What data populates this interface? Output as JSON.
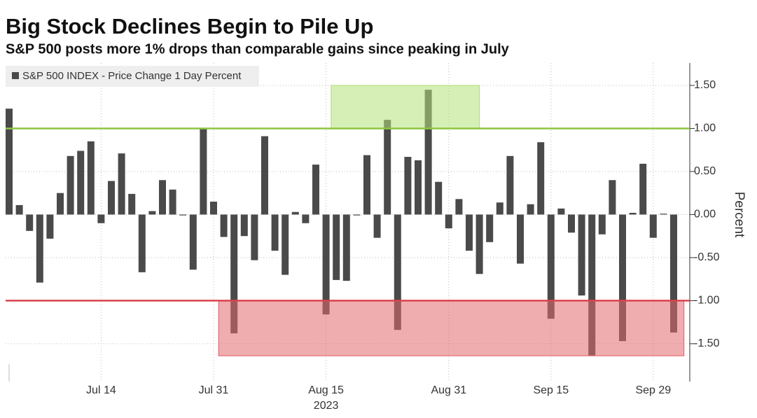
{
  "chart_data": {
    "type": "bar",
    "title": "Big Stock Declines Begin to Pile Up",
    "subtitle": "S&P 500 posts more 1% drops than comparable gains since peaking in July",
    "ylabel": "Percent",
    "xlabel": "2023",
    "categories": [
      "2023-06-30",
      "2023-07-03",
      "2023-07-05",
      "2023-07-06",
      "2023-07-07",
      "2023-07-10",
      "2023-07-11",
      "2023-07-12",
      "2023-07-13",
      "2023-07-14",
      "2023-07-17",
      "2023-07-18",
      "2023-07-19",
      "2023-07-20",
      "2023-07-21",
      "2023-07-24",
      "2023-07-25",
      "2023-07-26",
      "2023-07-27",
      "2023-07-28",
      "2023-07-31",
      "2023-08-01",
      "2023-08-02",
      "2023-08-03",
      "2023-08-04",
      "2023-08-07",
      "2023-08-08",
      "2023-08-09",
      "2023-08-10",
      "2023-08-11",
      "2023-08-14",
      "2023-08-15",
      "2023-08-16",
      "2023-08-17",
      "2023-08-18",
      "2023-08-21",
      "2023-08-22",
      "2023-08-23",
      "2023-08-24",
      "2023-08-25",
      "2023-08-28",
      "2023-08-29",
      "2023-08-30",
      "2023-08-31",
      "2023-09-01",
      "2023-09-05",
      "2023-09-06",
      "2023-09-07",
      "2023-09-08",
      "2023-09-11",
      "2023-09-12",
      "2023-09-13",
      "2023-09-14",
      "2023-09-15",
      "2023-09-18",
      "2023-09-19",
      "2023-09-20",
      "2023-09-21",
      "2023-09-22",
      "2023-09-25",
      "2023-09-26",
      "2023-09-27",
      "2023-09-28",
      "2023-09-29",
      "2023-10-02",
      "2023-10-03"
    ],
    "series": [
      {
        "name": "S&P 500 INDEX - Price Change 1 Day Percent",
        "color": "#4a4a4a",
        "values": [
          1.23,
          0.11,
          -0.19,
          -0.79,
          -0.28,
          0.25,
          0.68,
          0.74,
          0.85,
          -0.1,
          0.39,
          0.71,
          0.24,
          -0.67,
          0.04,
          0.4,
          0.29,
          -0.01,
          -0.64,
          1.0,
          0.15,
          -0.26,
          -1.38,
          -0.25,
          -0.53,
          0.91,
          -0.42,
          -0.7,
          0.03,
          -0.1,
          0.58,
          -1.16,
          -0.76,
          -0.77,
          -0.01,
          0.69,
          -0.27,
          1.1,
          -1.34,
          0.67,
          0.63,
          1.45,
          0.38,
          -0.16,
          0.18,
          -0.42,
          -0.69,
          -0.32,
          0.14,
          0.68,
          -0.57,
          0.12,
          0.84,
          -1.21,
          0.07,
          -0.21,
          -0.94,
          -1.64,
          -0.23,
          0.4,
          -1.47,
          0.02,
          0.59,
          -0.27,
          0.01,
          -1.37
        ]
      }
    ],
    "ylim": [
      -1.94,
      1.76
    ],
    "yticks": [
      {
        "value": -1.5,
        "label": "-1.50"
      },
      {
        "value": -1,
        "label": "-1.00"
      },
      {
        "value": -0.5,
        "label": "-0.50"
      },
      {
        "value": 0,
        "label": "0.00"
      },
      {
        "value": 0.5,
        "label": "0.50"
      },
      {
        "value": 1,
        "label": "1.00"
      },
      {
        "value": 1.5,
        "label": "1.50"
      }
    ],
    "xticks": [
      {
        "value": "2023-07-14",
        "label": "Jul 14"
      },
      {
        "value": "2023-07-31",
        "label": "Jul 31"
      },
      {
        "value": "2023-08-15",
        "label": "Aug 15"
      },
      {
        "value": "2023-08-31",
        "label": "Aug 31"
      },
      {
        "value": "2023-09-15",
        "label": "Sep 15"
      },
      {
        "value": "2023-09-29",
        "label": "Sep 29"
      }
    ],
    "reference_lines": [
      {
        "value": 1,
        "color": "#8dc63f"
      },
      {
        "value": -1,
        "color": "#d9434b"
      }
    ],
    "highlights": [
      {
        "from": "2023-08-16",
        "to": "2023-09-05",
        "range": [
          1,
          1.5
        ],
        "color": "#b5e27a"
      },
      {
        "from": "2023-08-01",
        "to": "2023-10-03",
        "range": [
          -1,
          -1.64
        ],
        "color": "#e36a70"
      }
    ],
    "grid": true,
    "legend": "top-left"
  }
}
